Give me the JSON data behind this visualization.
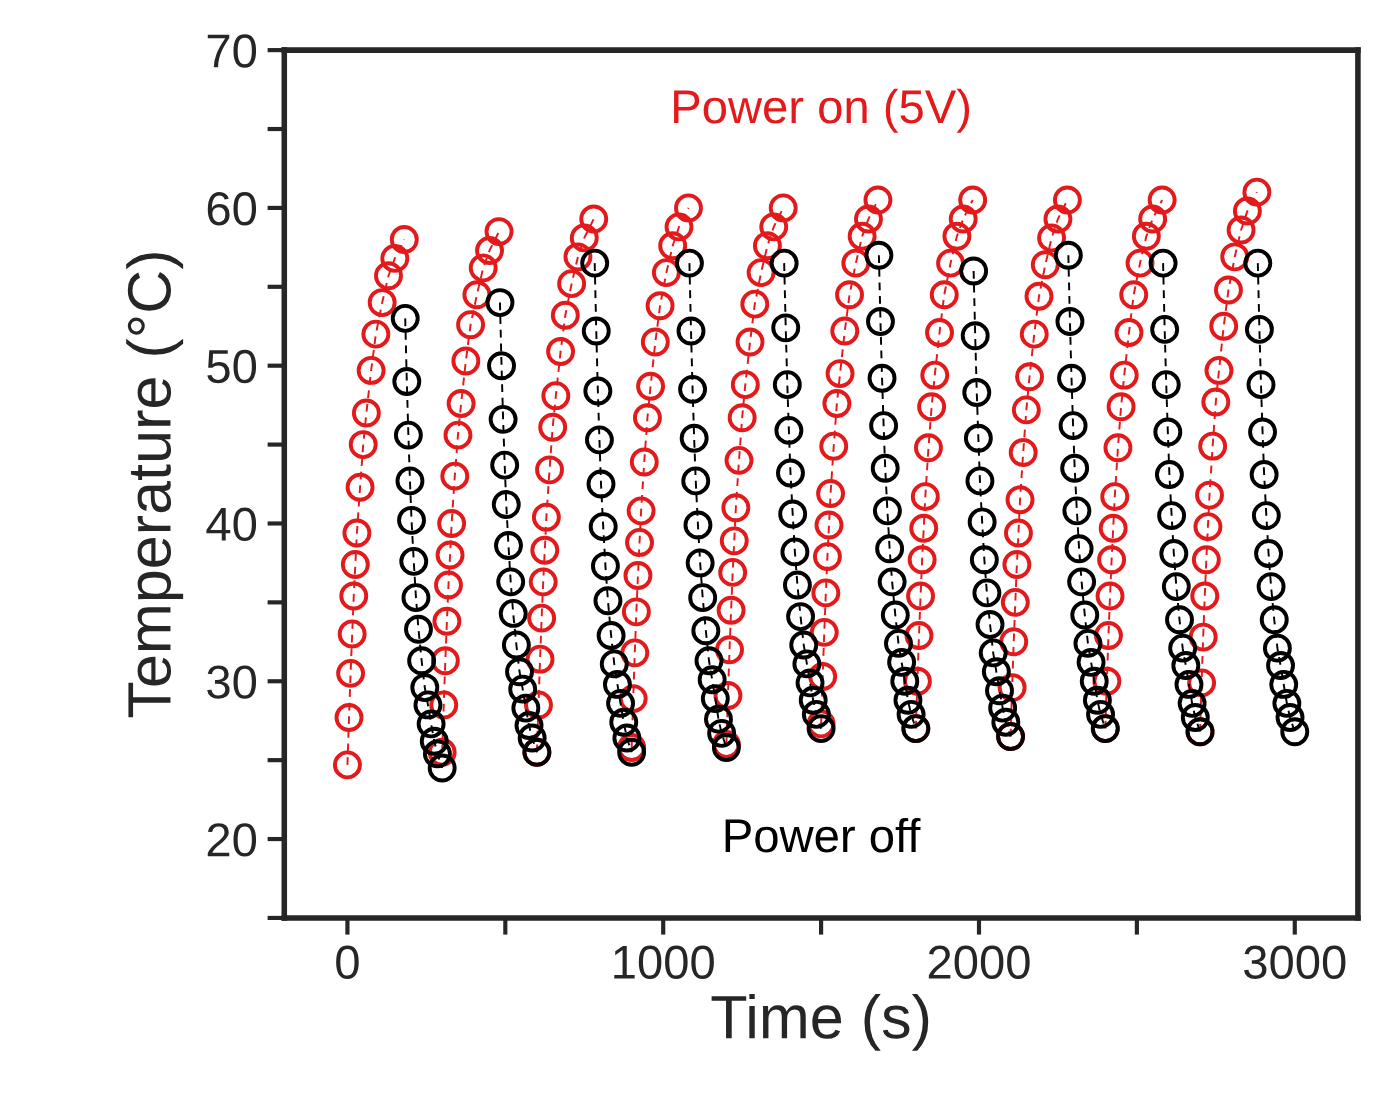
{
  "chart_data": {
    "type": "line",
    "xlabel": "Time (s)",
    "ylabel": "Temperature (°C)",
    "xlim": [
      -200,
      3200
    ],
    "xticks": [
      0,
      {
        "value": 500,
        "label": null
      },
      1000,
      {
        "value": 1500,
        "label": null
      },
      2000,
      {
        "value": 2500,
        "label": null
      },
      3000
    ],
    "ylim": [
      15,
      70
    ],
    "yticks": [
      {
        "value": 15,
        "label": null
      },
      20,
      {
        "value": 25,
        "label": null
      },
      30,
      {
        "value": 35,
        "label": null
      },
      40,
      {
        "value": 45,
        "label": null
      },
      50,
      {
        "value": 55,
        "label": null
      },
      60,
      {
        "value": 65,
        "label": null
      },
      70
    ],
    "grid": false,
    "legend": false,
    "marker": "circle",
    "line_style": "dashed",
    "series": [
      {
        "name": "Power on (5V)",
        "color": "#e31a1c",
        "x": [
          0,
          5,
          10,
          15,
          20,
          25,
          30,
          40,
          50,
          60,
          75,
          90,
          110,
          130,
          150,
          180,
          null,
          300,
          305,
          310,
          315,
          320,
          325,
          330,
          340,
          350,
          360,
          375,
          390,
          410,
          430,
          450,
          480,
          null,
          600,
          605,
          610,
          615,
          620,
          625,
          630,
          640,
          650,
          660,
          675,
          690,
          710,
          730,
          750,
          780,
          null,
          900,
          905,
          910,
          915,
          920,
          925,
          930,
          940,
          950,
          960,
          975,
          990,
          1010,
          1030,
          1050,
          1080,
          null,
          1200,
          1205,
          1210,
          1215,
          1220,
          1225,
          1230,
          1240,
          1250,
          1260,
          1275,
          1290,
          1310,
          1330,
          1350,
          1380,
          null,
          1500,
          1505,
          1510,
          1515,
          1520,
          1525,
          1530,
          1540,
          1550,
          1560,
          1575,
          1590,
          1610,
          1630,
          1650,
          1680,
          null,
          1800,
          1805,
          1810,
          1815,
          1820,
          1825,
          1830,
          1840,
          1850,
          1860,
          1875,
          1890,
          1910,
          1930,
          1950,
          1980,
          null,
          2100,
          2105,
          2110,
          2115,
          2120,
          2125,
          2130,
          2140,
          2150,
          2160,
          2175,
          2190,
          2210,
          2230,
          2250,
          2280,
          null,
          2400,
          2405,
          2410,
          2415,
          2420,
          2425,
          2430,
          2440,
          2450,
          2460,
          2475,
          2490,
          2510,
          2530,
          2550,
          2580,
          null,
          2700,
          2705,
          2710,
          2715,
          2720,
          2725,
          2730,
          2740,
          2750,
          2760,
          2775,
          2790,
          2810,
          2830,
          2850,
          2880
        ],
        "values": [
          24.7,
          27.7,
          30.5,
          33.0,
          35.4,
          37.4,
          39.4,
          42.3,
          45.0,
          47.0,
          49.7,
          52.0,
          54.0,
          55.7,
          56.8,
          58.0,
          null,
          25.5,
          28.5,
          31.3,
          33.8,
          36.1,
          38.0,
          40.0,
          43.0,
          45.6,
          47.6,
          50.3,
          52.6,
          54.5,
          56.2,
          57.3,
          58.5,
          null,
          25.5,
          28.5,
          31.4,
          34.0,
          36.3,
          38.3,
          40.4,
          43.4,
          46.1,
          48.1,
          50.9,
          53.2,
          55.2,
          56.9,
          58.1,
          59.3,
          null,
          25.8,
          28.9,
          31.8,
          34.4,
          36.7,
          38.8,
          40.8,
          43.9,
          46.7,
          48.7,
          51.5,
          53.8,
          55.9,
          57.6,
          58.8,
          60.0,
          null,
          26.0,
          29.1,
          32.0,
          34.5,
          36.9,
          38.9,
          41.0,
          44.0,
          46.7,
          48.8,
          51.5,
          53.9,
          55.9,
          57.6,
          58.8,
          60.0,
          null,
          27.3,
          30.3,
          33.1,
          35.6,
          37.9,
          39.9,
          41.9,
          44.9,
          47.6,
          49.5,
          52.2,
          54.5,
          56.5,
          58.2,
          59.3,
          60.5,
          null,
          27.0,
          30.0,
          32.9,
          35.4,
          37.7,
          39.7,
          41.7,
          44.8,
          47.4,
          49.4,
          52.1,
          54.5,
          56.5,
          58.2,
          59.3,
          60.5,
          null,
          26.5,
          29.6,
          32.5,
          35.0,
          37.4,
          39.4,
          41.5,
          44.5,
          47.2,
          49.3,
          52.0,
          54.4,
          56.4,
          58.1,
          59.3,
          60.5,
          null,
          27.0,
          30.0,
          32.9,
          35.4,
          37.7,
          39.7,
          41.7,
          44.8,
          47.4,
          49.4,
          52.1,
          54.5,
          56.5,
          58.2,
          59.3,
          60.5,
          null,
          26.8,
          29.9,
          32.8,
          35.4,
          37.7,
          39.8,
          41.8,
          44.9,
          47.7,
          49.7,
          52.5,
          54.8,
          56.9,
          58.6,
          59.8,
          61.0
        ]
      },
      {
        "name": "Power off",
        "color": "#000000",
        "x": [
          183,
          188,
          193,
          198,
          203,
          210,
          217,
          225,
          235,
          245,
          255,
          265,
          275,
          285,
          300,
          null,
          483,
          488,
          493,
          498,
          503,
          510,
          517,
          525,
          535,
          545,
          555,
          565,
          575,
          585,
          600,
          null,
          783,
          788,
          793,
          798,
          803,
          810,
          817,
          825,
          835,
          845,
          855,
          865,
          875,
          885,
          900,
          null,
          1083,
          1088,
          1093,
          1098,
          1103,
          1110,
          1117,
          1125,
          1135,
          1145,
          1155,
          1165,
          1175,
          1185,
          1200,
          null,
          1383,
          1388,
          1393,
          1398,
          1403,
          1410,
          1417,
          1425,
          1435,
          1445,
          1455,
          1465,
          1475,
          1485,
          1500,
          null,
          1683,
          1688,
          1693,
          1698,
          1703,
          1710,
          1717,
          1725,
          1735,
          1745,
          1755,
          1765,
          1775,
          1785,
          1800,
          null,
          1983,
          1988,
          1993,
          1998,
          2003,
          2010,
          2017,
          2025,
          2035,
          2045,
          2055,
          2065,
          2075,
          2085,
          2100,
          null,
          2283,
          2288,
          2293,
          2298,
          2303,
          2310,
          2317,
          2325,
          2335,
          2345,
          2355,
          2365,
          2375,
          2385,
          2400,
          null,
          2583,
          2588,
          2593,
          2598,
          2603,
          2610,
          2617,
          2625,
          2635,
          2645,
          2655,
          2665,
          2675,
          2685,
          2700,
          null,
          2883,
          2888,
          2893,
          2898,
          2903,
          2910,
          2917,
          2925,
          2935,
          2945,
          2955,
          2965,
          2975,
          2985,
          3000
        ],
        "values": [
          53.0,
          49.0,
          45.6,
          42.7,
          40.2,
          37.6,
          35.3,
          33.3,
          31.3,
          29.6,
          28.5,
          27.3,
          26.2,
          25.4,
          24.5,
          null,
          54.0,
          50.0,
          46.6,
          43.7,
          41.2,
          38.6,
          36.3,
          34.3,
          32.3,
          30.6,
          29.5,
          28.3,
          27.2,
          26.4,
          25.5,
          null,
          56.5,
          52.2,
          48.4,
          45.3,
          42.5,
          39.8,
          37.3,
          35.1,
          32.9,
          31.1,
          29.8,
          28.6,
          27.4,
          26.4,
          25.5,
          null,
          56.5,
          52.2,
          48.5,
          45.4,
          42.7,
          39.9,
          37.5,
          35.3,
          33.2,
          31.3,
          30.1,
          28.9,
          27.6,
          26.7,
          25.8,
          null,
          56.5,
          52.4,
          48.8,
          45.9,
          43.2,
          40.6,
          38.2,
          36.1,
          34.1,
          32.3,
          31.1,
          29.9,
          28.8,
          27.9,
          27.0,
          null,
          57.0,
          52.8,
          49.2,
          46.2,
          43.5,
          40.8,
          38.4,
          36.3,
          34.2,
          32.4,
          31.2,
          30.0,
          28.8,
          27.9,
          27.0,
          null,
          56.0,
          51.9,
          48.3,
          45.4,
          42.7,
          40.1,
          37.7,
          35.6,
          33.6,
          31.8,
          30.6,
          29.4,
          28.3,
          27.4,
          26.5,
          null,
          57.0,
          52.8,
          49.2,
          46.2,
          43.5,
          40.8,
          38.4,
          36.3,
          34.2,
          32.4,
          31.2,
          30.0,
          28.8,
          27.9,
          27.0,
          null,
          56.5,
          52.3,
          48.8,
          45.8,
          43.1,
          40.5,
          38.1,
          36.0,
          33.9,
          32.1,
          31.0,
          29.8,
          28.6,
          27.7,
          26.8,
          null,
          56.5,
          52.3,
          48.8,
          45.8,
          43.1,
          40.5,
          38.1,
          36.0,
          33.9,
          32.1,
          31.0,
          29.8,
          28.6,
          27.7,
          26.8
        ]
      }
    ]
  }
}
